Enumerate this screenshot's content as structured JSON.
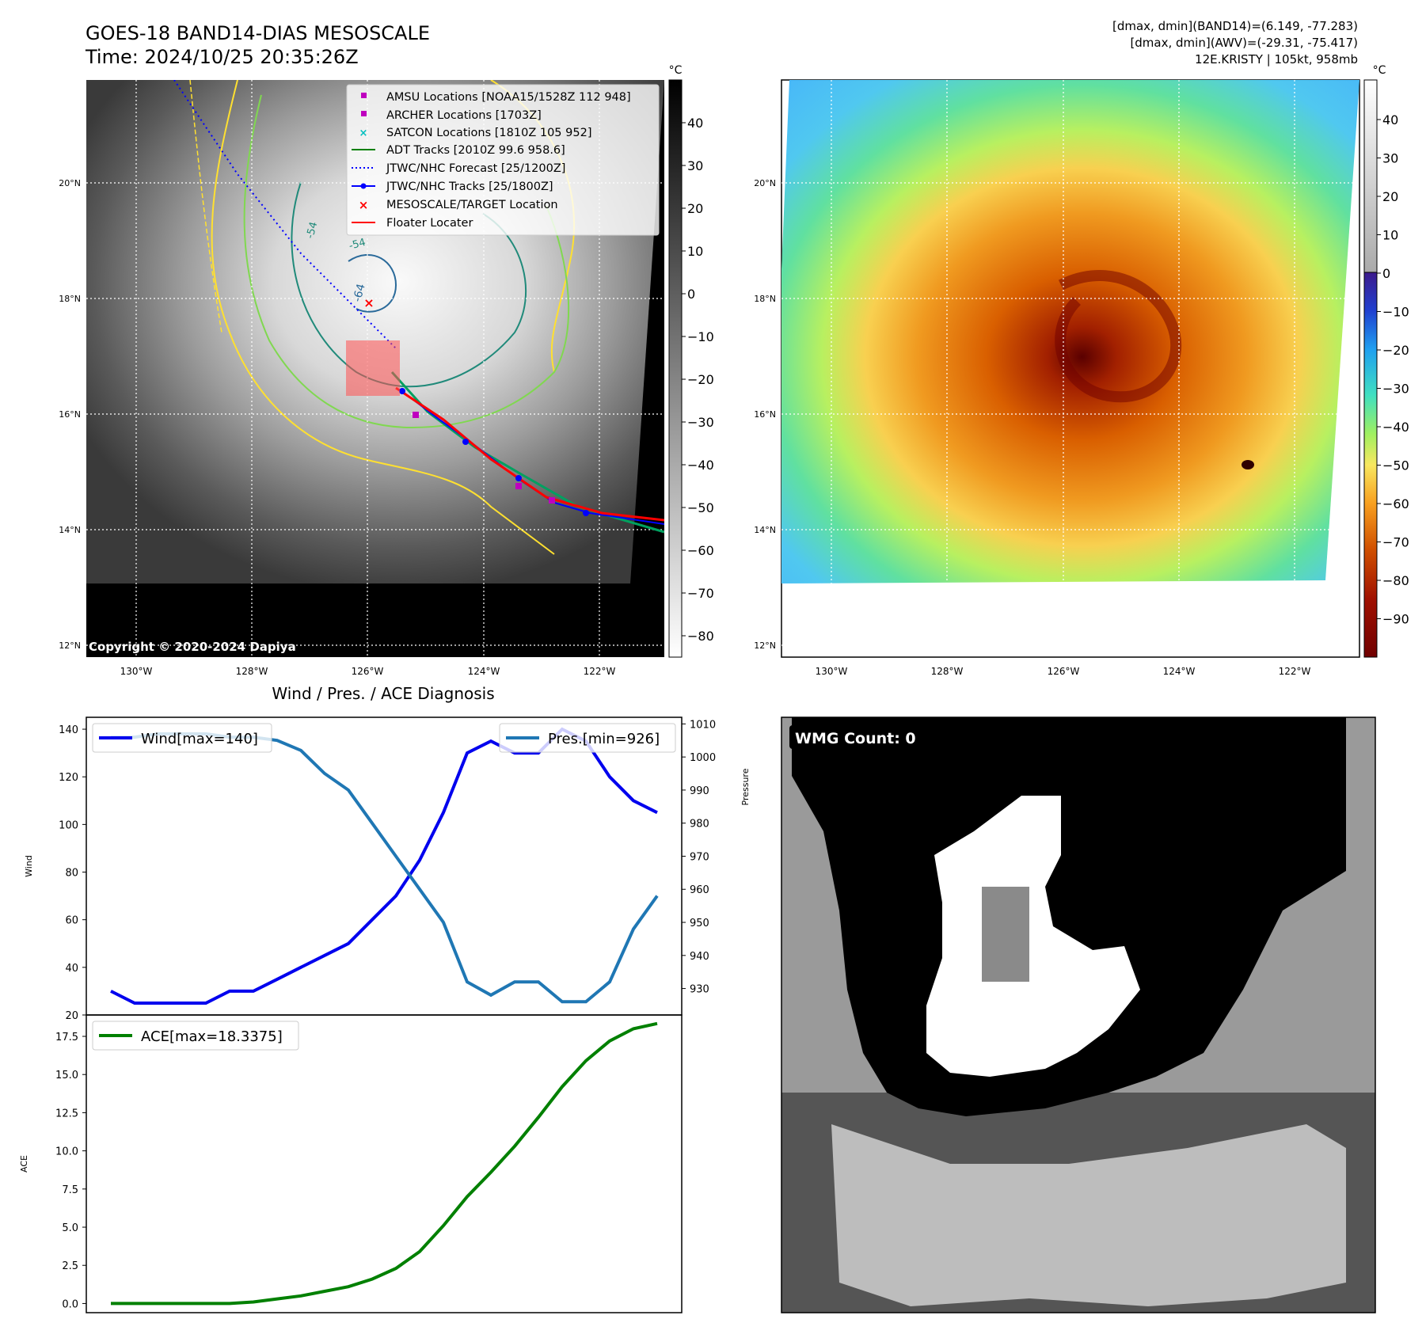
{
  "header": {
    "title_line1": "GOES-18 BAND14-DIAS MESOSCALE",
    "title_line2": "Time: 2024/10/25 20:35:26Z",
    "info_line1": "[dmax, dmin](BAND14)=(6.149, -77.283)",
    "info_line2": "[dmax, dmin](AWV)=(-29.31, -75.417)",
    "info_line3": "12E.KRISTY | 105kt, 958mb"
  },
  "map_axes": {
    "lat_ticks": [
      "20°N",
      "18°N",
      "16°N",
      "14°N",
      "12°N"
    ],
    "lon_ticks": [
      "130°W",
      "128°W",
      "126°W",
      "124°W",
      "122°W"
    ],
    "unit_label": "°C"
  },
  "band14_panel": {
    "copyright": "Copyright © 2020-2024 Dapiya",
    "colorbar_ticks": [
      "40",
      "30",
      "20",
      "10",
      "0",
      "−10",
      "−20",
      "−30",
      "−40",
      "−50",
      "−60",
      "−70",
      "−80"
    ],
    "contour_labels": [
      "-54",
      "-64",
      "-54"
    ],
    "legend": [
      {
        "label": "AMSU Locations [NOAA15/1528Z 112 948]",
        "color": "#bf00bf",
        "marker": "square"
      },
      {
        "label": "ARCHER Locations [1703Z]",
        "color": "#bf00bf",
        "marker": "square"
      },
      {
        "label": "SATCON Locations [1810Z 105 952]",
        "color": "#00bfbf",
        "marker": "x"
      },
      {
        "label": "ADT Tracks [2010Z 99.6 958.6]",
        "color": "#008000",
        "marker": "line"
      },
      {
        "label": "JTWC/NHC Forecast [25/1200Z]",
        "color": "#0000ff",
        "marker": "dotted"
      },
      {
        "label": "JTWC/NHC Tracks [25/1800Z]",
        "color": "#0000ff",
        "marker": "line-dot"
      },
      {
        "label": "MESOSCALE/TARGET Location",
        "color": "#ff0000",
        "marker": "x"
      },
      {
        "label": "Floater Locater",
        "color": "#ff0000",
        "marker": "line"
      }
    ]
  },
  "awv_panel": {
    "colorbar_ticks": [
      "40",
      "30",
      "20",
      "10",
      "0",
      "−10",
      "−20",
      "−30",
      "−40",
      "−50",
      "−60",
      "−70",
      "−80",
      "−90"
    ]
  },
  "wmg_panel": {
    "label": "WMG Count: 0"
  },
  "diagnosis_panel": {
    "title": "Wind / Pres. / ACE Diagnosis"
  },
  "chart_data": [
    {
      "type": "line",
      "title": "Wind / Pres. / ACE Diagnosis",
      "ylabel": "Wind",
      "ylabel_right": "Pressure",
      "ylim": [
        20,
        145
      ],
      "ylim_right": [
        922,
        1012
      ],
      "yticks": [
        20,
        40,
        60,
        80,
        100,
        120,
        140
      ],
      "yticks_right": [
        930,
        940,
        950,
        960,
        970,
        980,
        990,
        1000,
        1010
      ],
      "x": [
        0,
        1,
        2,
        3,
        4,
        5,
        6,
        7,
        8,
        9,
        10,
        11,
        12,
        13,
        14,
        15,
        16,
        17,
        18,
        19,
        20,
        21,
        22,
        23
      ],
      "series": [
        {
          "name": "Wind[max=140]",
          "color": "#0000ee",
          "axis": "left",
          "values": [
            30,
            25,
            25,
            25,
            25,
            30,
            30,
            35,
            40,
            45,
            50,
            60,
            70,
            85,
            105,
            130,
            135,
            130,
            130,
            140,
            135,
            120,
            110,
            105
          ]
        },
        {
          "name": "Pres.[min=926]",
          "color": "#1f77b4",
          "axis": "right",
          "values": [
            1006,
            1006,
            1007,
            1007,
            1007,
            1006,
            1006,
            1005,
            1002,
            995,
            990,
            980,
            970,
            960,
            950,
            932,
            928,
            932,
            932,
            926,
            926,
            932,
            948,
            958
          ]
        }
      ],
      "legend_position": "top-left / top-right"
    },
    {
      "type": "line",
      "ylabel": "ACE",
      "ylim": [
        -0.6,
        18.9
      ],
      "yticks": [
        0.0,
        2.5,
        5.0,
        7.5,
        10.0,
        12.5,
        15.0,
        17.5
      ],
      "ytick_labels": [
        "0.0",
        "2.5",
        "5.0",
        "7.5",
        "10.0",
        "12.5",
        "15.0",
        "17.5"
      ],
      "x": [
        0,
        1,
        2,
        3,
        4,
        5,
        6,
        7,
        8,
        9,
        10,
        11,
        12,
        13,
        14,
        15,
        16,
        17,
        18,
        19,
        20,
        21,
        22,
        23
      ],
      "series": [
        {
          "name": "ACE[max=18.3375]",
          "color": "#008000",
          "values": [
            0,
            0,
            0,
            0,
            0,
            0,
            0.1,
            0.3,
            0.5,
            0.8,
            1.1,
            1.6,
            2.3,
            3.4,
            5.1,
            7,
            8.6,
            10.3,
            12.2,
            14.2,
            15.9,
            17.2,
            18.0,
            18.3375
          ]
        }
      ],
      "legend_position": "top-left"
    }
  ]
}
